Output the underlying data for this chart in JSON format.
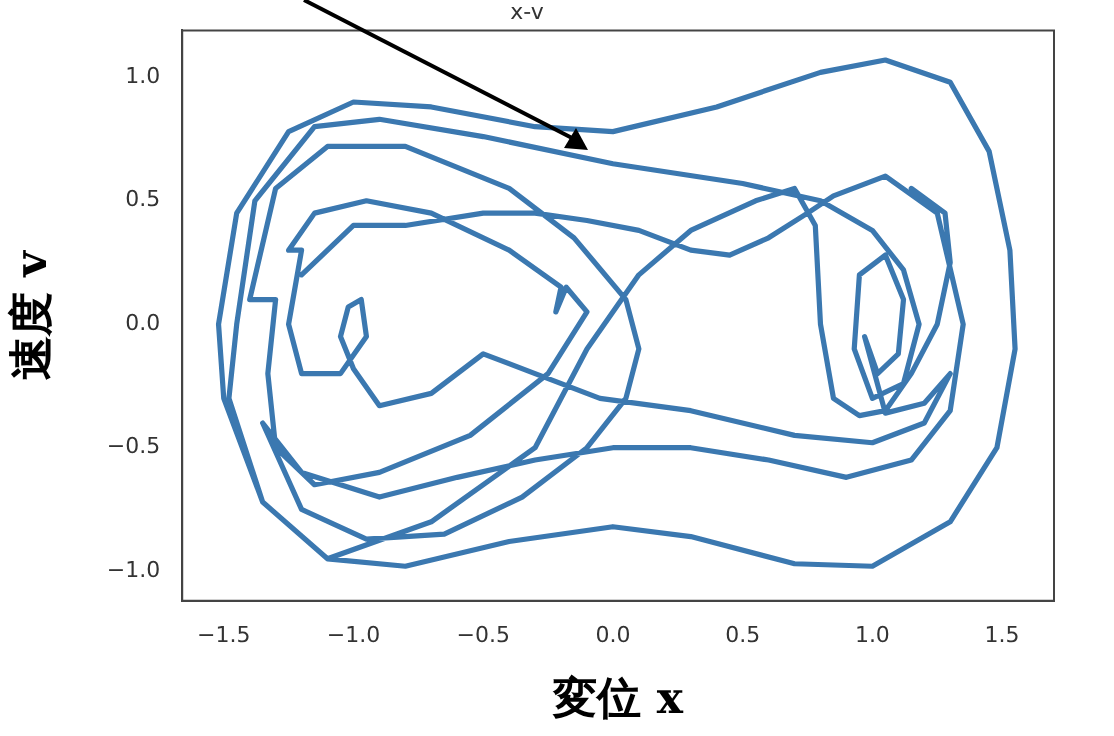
{
  "chart_data": {
    "type": "line",
    "title": "x-v",
    "xlabel": "変位 x",
    "ylabel": "速度 v",
    "xlim": [
      -1.66,
      1.7
    ],
    "ylim": [
      -1.12,
      1.19
    ],
    "xticks": [
      {
        "value": -1.5,
        "label": "−1.5"
      },
      {
        "value": -1.0,
        "label": "−1.0"
      },
      {
        "value": -0.5,
        "label": "−0.5"
      },
      {
        "value": 0.0,
        "label": "0.0"
      },
      {
        "value": 0.5,
        "label": "0.5"
      },
      {
        "value": 1.0,
        "label": "1.0"
      },
      {
        "value": 1.5,
        "label": "1.5"
      }
    ],
    "yticks": [
      {
        "value": -1.0,
        "label": "−1.0"
      },
      {
        "value": -0.5,
        "label": "−0.5"
      },
      {
        "value": 0.0,
        "label": "0.0"
      },
      {
        "value": 0.5,
        "label": "0.5"
      },
      {
        "value": 1.0,
        "label": "1.0"
      }
    ],
    "grid": false,
    "legend": false,
    "marker": "none",
    "line_style": "solid",
    "series": [
      {
        "color": "#3b78b0",
        "x": [
          1.15,
          1.28,
          1.3,
          1.25,
          1.15,
          1.05,
          0.95,
          0.85,
          0.8,
          0.78,
          0.7,
          0.55,
          0.3,
          0.1,
          -0.1,
          -0.3,
          -0.7,
          -1.1,
          -1.35,
          -1.5,
          -1.52,
          -1.45,
          -1.25,
          -1.0,
          -0.7,
          -0.3,
          0.0,
          0.4,
          0.8,
          1.05,
          1.3,
          1.45,
          1.53,
          1.55,
          1.48,
          1.3,
          1.0,
          0.7,
          0.3,
          0.0,
          -0.4,
          -0.8,
          -1.1,
          -1.35,
          -1.48,
          -1.45,
          -1.38,
          -1.15,
          -0.9,
          -0.5,
          0.0,
          0.5,
          0.8,
          1.0,
          1.12,
          1.18,
          1.12,
          1.0,
          0.93,
          0.95,
          1.05,
          1.12,
          1.1,
          1.02,
          0.97,
          1.05,
          1.2,
          1.3,
          1.2,
          1.0,
          0.7,
          0.3,
          -0.05,
          -0.3,
          -0.5,
          -0.7,
          -0.9,
          -1.0,
          -1.05,
          -1.02,
          -0.97,
          -0.95,
          -1.05,
          -1.2,
          -1.25,
          -1.2,
          -1.25,
          -1.15,
          -0.95,
          -0.7,
          -0.4,
          -0.2,
          -0.22,
          -0.18,
          -0.1,
          -0.25,
          -0.55,
          -0.9,
          -1.15,
          -1.3,
          -1.33,
          -1.3,
          -1.4,
          -1.3,
          -1.1,
          -0.8,
          -0.4,
          -0.15,
          0.05,
          0.1,
          0.05,
          -0.1,
          -0.35,
          -0.65,
          -0.95,
          -1.2,
          -1.35,
          -1.2,
          -0.9,
          -0.6,
          -0.3,
          0.0,
          0.3,
          0.6,
          0.9,
          1.15,
          1.3,
          1.35,
          1.25,
          1.05,
          0.85,
          0.75,
          0.6,
          0.45,
          0.3,
          0.1,
          -0.1,
          -0.3,
          -0.5,
          -0.8,
          -1.0,
          -1.2
        ],
        "values": [
          0.55,
          0.45,
          0.25,
          0.0,
          -0.2,
          -0.35,
          -0.37,
          -0.3,
          0.0,
          0.4,
          0.55,
          0.5,
          0.38,
          0.2,
          -0.1,
          -0.5,
          -0.8,
          -0.95,
          -0.72,
          -0.3,
          0.0,
          0.45,
          0.78,
          0.9,
          0.88,
          0.8,
          0.78,
          0.88,
          1.02,
          1.07,
          0.98,
          0.7,
          0.3,
          -0.1,
          -0.5,
          -0.8,
          -0.98,
          -0.97,
          -0.86,
          -0.82,
          -0.88,
          -0.98,
          -0.95,
          -0.72,
          -0.3,
          0.0,
          0.5,
          0.8,
          0.83,
          0.76,
          0.65,
          0.57,
          0.5,
          0.38,
          0.22,
          0.0,
          -0.24,
          -0.3,
          -0.1,
          0.2,
          0.28,
          0.1,
          -0.12,
          -0.2,
          -0.05,
          -0.36,
          -0.32,
          -0.2,
          -0.4,
          -0.48,
          -0.45,
          -0.35,
          -0.3,
          -0.2,
          -0.12,
          -0.28,
          -0.33,
          -0.18,
          -0.05,
          0.07,
          0.1,
          -0.05,
          -0.2,
          -0.2,
          0.0,
          0.3,
          0.3,
          0.45,
          0.5,
          0.45,
          0.3,
          0.15,
          0.05,
          0.15,
          0.05,
          -0.2,
          -0.45,
          -0.6,
          -0.65,
          -0.5,
          -0.2,
          0.1,
          0.1,
          0.55,
          0.72,
          0.72,
          0.55,
          0.35,
          0.1,
          -0.1,
          -0.3,
          -0.5,
          -0.7,
          -0.85,
          -0.87,
          -0.75,
          -0.4,
          -0.6,
          -0.7,
          -0.62,
          -0.55,
          -0.5,
          -0.5,
          -0.55,
          -0.62,
          -0.55,
          -0.35,
          0.0,
          0.45,
          0.6,
          0.52,
          0.45,
          0.35,
          0.28,
          0.3,
          0.38,
          0.42,
          0.45,
          0.45,
          0.4,
          0.4,
          0.2
        ]
      }
    ]
  }
}
